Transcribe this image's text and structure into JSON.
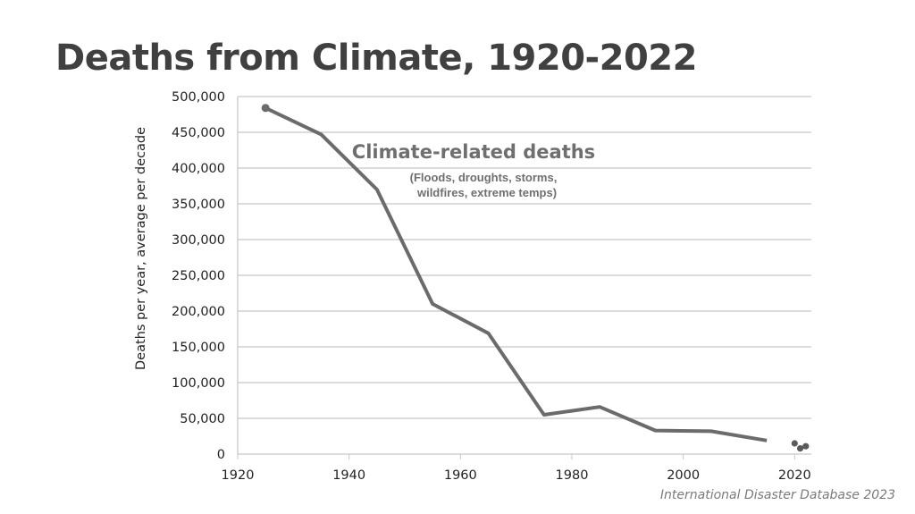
{
  "chart_data": {
    "type": "line",
    "title": "Deaths from Climate, 1920-2022",
    "xlabel": "",
    "ylabel": "Deaths per year, average per decade",
    "xlim": [
      1920,
      2023
    ],
    "ylim": [
      0,
      500000
    ],
    "x_ticks": [
      1920,
      1940,
      1960,
      1980,
      2000,
      2020
    ],
    "y_ticks": [
      0,
      50000,
      100000,
      150000,
      200000,
      250000,
      300000,
      350000,
      400000,
      450000,
      500000
    ],
    "y_tick_labels": [
      "0",
      "50,000",
      "100,000",
      "150,000",
      "200,000",
      "250,000",
      "300,000",
      "350,000",
      "400,000",
      "450,000",
      "500,000"
    ],
    "grid": "horizontal",
    "series": [
      {
        "x": [
          1925,
          1935,
          1945,
          1955,
          1965,
          1975,
          1985,
          1995,
          2005,
          2015
        ],
        "y": [
          484000,
          447000,
          370000,
          210000,
          169000,
          55000,
          66000,
          33000,
          32000,
          19000
        ],
        "style": "line",
        "color": "#6b6b6b"
      },
      {
        "x": [
          2020,
          2021,
          2022
        ],
        "y": [
          15000,
          8000,
          11000
        ],
        "style": "points",
        "color": "#5a5a5a"
      }
    ],
    "annotations": [
      {
        "text": "Climate-related deaths"
      },
      {
        "text": "(Floods, droughts, storms,"
      },
      {
        "text": "wildfires, extreme temps)"
      }
    ]
  },
  "source": "International Disaster Database 2023"
}
